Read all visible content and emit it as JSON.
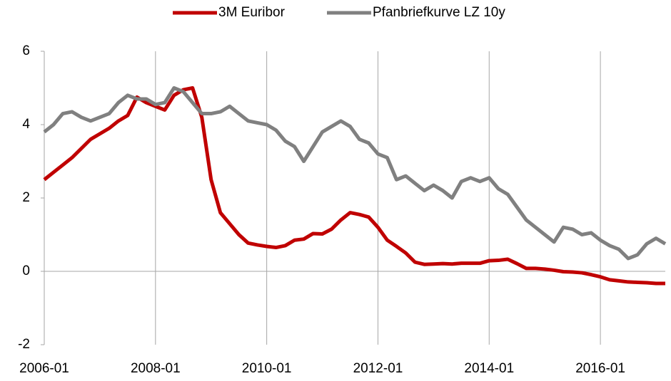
{
  "chart_data": {
    "type": "line",
    "x": [
      "2006-01",
      "2006-03",
      "2006-05",
      "2006-07",
      "2006-09",
      "2006-11",
      "2007-01",
      "2007-03",
      "2007-05",
      "2007-07",
      "2007-09",
      "2007-11",
      "2008-01",
      "2008-03",
      "2008-05",
      "2008-07",
      "2008-09",
      "2008-11",
      "2009-01",
      "2009-03",
      "2009-05",
      "2009-07",
      "2009-09",
      "2009-11",
      "2010-01",
      "2010-03",
      "2010-05",
      "2010-07",
      "2010-09",
      "2010-11",
      "2011-01",
      "2011-03",
      "2011-05",
      "2011-07",
      "2011-09",
      "2011-11",
      "2012-01",
      "2012-03",
      "2012-05",
      "2012-07",
      "2012-09",
      "2012-11",
      "2013-01",
      "2013-03",
      "2013-05",
      "2013-07",
      "2013-09",
      "2013-11",
      "2014-01",
      "2014-03",
      "2014-05",
      "2014-07",
      "2014-09",
      "2014-11",
      "2015-01",
      "2015-03",
      "2015-05",
      "2015-07",
      "2015-09",
      "2015-11",
      "2016-01",
      "2016-03",
      "2016-05",
      "2016-07",
      "2016-09",
      "2016-11",
      "2017-01",
      "2017-03"
    ],
    "series": [
      {
        "name": "3M Euribor",
        "color": "#c00000",
        "values": [
          2.5,
          2.7,
          2.9,
          3.1,
          3.35,
          3.6,
          3.75,
          3.9,
          4.1,
          4.25,
          4.75,
          4.6,
          4.5,
          4.4,
          4.8,
          4.95,
          5.0,
          4.2,
          2.5,
          1.6,
          1.3,
          1.0,
          0.77,
          0.72,
          0.68,
          0.65,
          0.7,
          0.85,
          0.88,
          1.03,
          1.02,
          1.15,
          1.4,
          1.6,
          1.55,
          1.48,
          1.2,
          0.85,
          0.68,
          0.5,
          0.25,
          0.19,
          0.2,
          0.21,
          0.2,
          0.22,
          0.22,
          0.22,
          0.29,
          0.3,
          0.33,
          0.21,
          0.08,
          0.08,
          0.06,
          0.03,
          -0.01,
          -0.02,
          -0.04,
          -0.09,
          -0.15,
          -0.23,
          -0.26,
          -0.29,
          -0.3,
          -0.31,
          -0.33,
          -0.33
        ]
      },
      {
        "name": "Pfanbriefkurve LZ 10y",
        "color": "#808080",
        "values": [
          3.8,
          4.0,
          4.3,
          4.35,
          4.2,
          4.1,
          4.2,
          4.3,
          4.6,
          4.8,
          4.7,
          4.7,
          4.55,
          4.6,
          5.0,
          4.9,
          4.6,
          4.3,
          4.3,
          4.35,
          4.5,
          4.3,
          4.1,
          4.05,
          4.0,
          3.85,
          3.55,
          3.4,
          3.0,
          3.4,
          3.8,
          3.95,
          4.1,
          3.95,
          3.6,
          3.5,
          3.2,
          3.1,
          2.5,
          2.6,
          2.4,
          2.2,
          2.35,
          2.2,
          2.0,
          2.45,
          2.55,
          2.45,
          2.55,
          2.25,
          2.1,
          1.75,
          1.4,
          1.2,
          1.0,
          0.8,
          1.2,
          1.15,
          1.0,
          1.05,
          0.85,
          0.7,
          0.6,
          0.35,
          0.45,
          0.75,
          0.9,
          0.75
        ]
      }
    ],
    "xlim": [
      "2006-01",
      "2017-03"
    ],
    "xticks": [
      "2006-01",
      "2008-01",
      "2010-01",
      "2012-01",
      "2014-01",
      "2016-01"
    ],
    "ylim": [
      -2,
      6
    ],
    "yticks": [
      -2,
      0,
      2,
      4,
      6
    ],
    "grid": "x",
    "legend": "top"
  }
}
